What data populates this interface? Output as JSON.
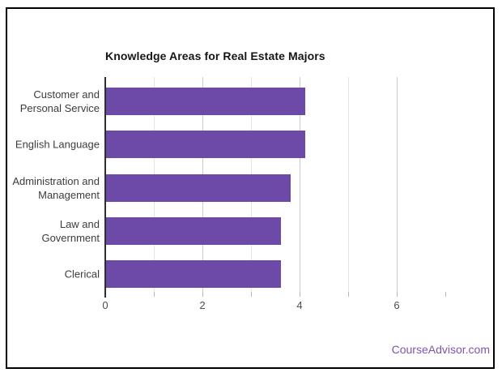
{
  "page": {
    "background_color": "#ffffff",
    "frame_border_color": "#000000"
  },
  "chart_data": {
    "type": "bar",
    "orientation": "horizontal",
    "title": "Knowledge Areas for Real Estate Majors",
    "xlabel": "",
    "ylabel": "",
    "categories": [
      "Customer and\nPersonal Service",
      "English Language",
      "Administration and\nManagement",
      "Law and\nGovernment",
      "Clerical"
    ],
    "values": [
      4.1,
      4.1,
      3.8,
      3.6,
      3.6
    ],
    "xlim": [
      0,
      7.1
    ],
    "x_ticks": [
      0,
      2,
      4,
      6
    ],
    "x_major_gridlines": [
      2,
      4,
      6
    ],
    "x_minor_gridlines": [
      1,
      3,
      5
    ],
    "x_axis_tickmarks": [
      1,
      2,
      3,
      4,
      5,
      6,
      7
    ],
    "grid": true,
    "legend_position": "none",
    "bar_color": "#6D49A8",
    "gridline_color_major": "#cccccc",
    "gridline_color_minor": "#e4e4e4"
  },
  "footer": {
    "watermark": "CourseAdvisor.com",
    "color": "#7D55AE"
  }
}
